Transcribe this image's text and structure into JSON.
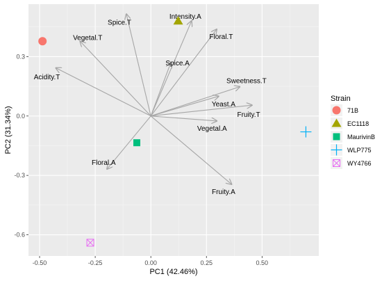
{
  "chart_data": {
    "type": "scatter",
    "title": "",
    "xlabel": "PC1 (42.46%)",
    "ylabel": "PC2 (31.34%)",
    "xlim": [
      -0.55,
      0.755
    ],
    "ylim": [
      -0.707,
      0.565
    ],
    "xticks": [
      -0.5,
      -0.25,
      0.0,
      0.25,
      0.5
    ],
    "xtick_labels": [
      "-0.50",
      "-0.25",
      "0.00",
      "0.25",
      "0.50"
    ],
    "yticks": [
      0.3,
      0.0,
      -0.3,
      -0.6
    ],
    "ytick_labels": [
      "0.3",
      "0.0",
      "-0.3",
      "-0.6"
    ],
    "grid": true,
    "panel_background": "#ebebeb",
    "arrow_color": "#a6a6a6",
    "legend": {
      "title": "Strain",
      "position": "right"
    },
    "points": [
      {
        "strain": "71B",
        "x": -0.487,
        "y": 0.378,
        "shape": "circle",
        "color": "#f8766d"
      },
      {
        "strain": "EC1118",
        "x": 0.123,
        "y": 0.48,
        "shape": "triangle",
        "color": "#a3a500"
      },
      {
        "strain": "MaurivinB",
        "x": -0.063,
        "y": -0.135,
        "shape": "square",
        "color": "#00bf7d"
      },
      {
        "strain": "WLP775",
        "x": 0.697,
        "y": -0.08,
        "shape": "plus",
        "color": "#00b0f6"
      },
      {
        "strain": "WY4766",
        "x": -0.272,
        "y": -0.64,
        "shape": "square-cross",
        "color": "#e76bf3"
      }
    ],
    "loadings": [
      {
        "name": "Spice.T",
        "x": -0.11,
        "y": 0.515,
        "lx": -0.141,
        "ly": 0.475
      },
      {
        "name": "Intensity.A",
        "x": 0.183,
        "y": 0.48,
        "lx": 0.155,
        "ly": 0.505
      },
      {
        "name": "Vegetal.T",
        "x": -0.318,
        "y": 0.378,
        "lx": -0.284,
        "ly": 0.398
      },
      {
        "name": "Floral.T",
        "x": 0.296,
        "y": 0.438,
        "lx": 0.316,
        "ly": 0.403
      },
      {
        "name": "Spice.A",
        "x": 0.09,
        "y": 0.27,
        "lx": 0.12,
        "ly": 0.27
      },
      {
        "name": "Acidity.T",
        "x": -0.427,
        "y": 0.243,
        "lx": -0.467,
        "ly": 0.2
      },
      {
        "name": "Sweetness.T",
        "x": 0.4,
        "y": 0.148,
        "lx": 0.43,
        "ly": 0.18
      },
      {
        "name": "Yeast.A",
        "x": 0.305,
        "y": 0.1,
        "lx": 0.327,
        "ly": 0.062
      },
      {
        "name": "Fruity.T",
        "x": 0.455,
        "y": 0.055,
        "lx": 0.44,
        "ly": 0.01
      },
      {
        "name": "Vegetal.A",
        "x": 0.297,
        "y": -0.025,
        "lx": 0.275,
        "ly": -0.06
      },
      {
        "name": "Floral.A",
        "x": -0.197,
        "y": -0.268,
        "lx": -0.212,
        "ly": -0.233
      },
      {
        "name": "Fruity.A",
        "x": 0.363,
        "y": -0.345,
        "lx": 0.327,
        "ly": -0.38
      }
    ]
  }
}
